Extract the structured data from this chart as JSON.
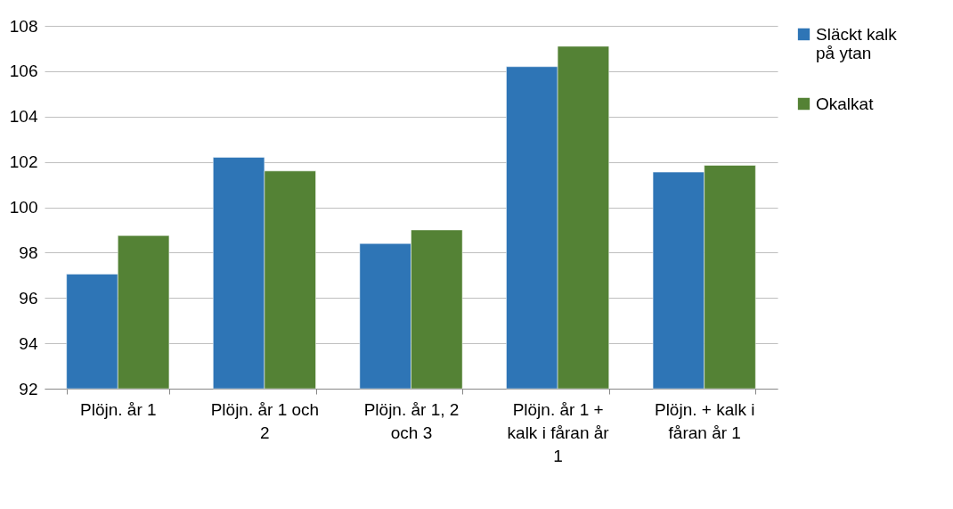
{
  "chart_data": {
    "type": "bar",
    "categories": [
      "Plöjn. år 1",
      "Plöjn. år 1 och 2",
      "Plöjn. år 1, 2 och 3",
      "Plöjn. år 1 + kalk i fåran år 1",
      "Plöjn. + kalk i fåran år 1"
    ],
    "series": [
      {
        "name": "Släckt kalk på ytan",
        "color": "#2e75b6",
        "values": [
          97.05,
          102.2,
          98.4,
          106.2,
          101.55
        ]
      },
      {
        "name": "Okalkat",
        "color": "#548235",
        "values": [
          98.75,
          101.6,
          99.0,
          107.1,
          101.85
        ]
      }
    ],
    "ylim": [
      92,
      108
    ],
    "yticks": [
      92,
      94,
      96,
      98,
      100,
      102,
      104,
      106,
      108
    ],
    "grid": "y",
    "legend": "right"
  }
}
